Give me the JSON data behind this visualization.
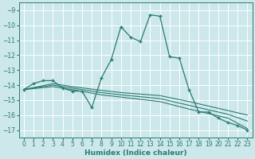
{
  "xlabel": "Humidex (Indice chaleur)",
  "xlim": [
    -0.5,
    23.5
  ],
  "ylim": [
    -17.5,
    -8.5
  ],
  "yticks": [
    -9,
    -10,
    -11,
    -12,
    -13,
    -14,
    -15,
    -16,
    -17
  ],
  "xticks": [
    0,
    1,
    2,
    3,
    4,
    5,
    6,
    7,
    8,
    9,
    10,
    11,
    12,
    13,
    14,
    15,
    16,
    17,
    18,
    19,
    20,
    21,
    22,
    23
  ],
  "bg_color": "#cce8ea",
  "line_color": "#2a7a72",
  "grid_color": "#ffffff",
  "main_line": {
    "x": [
      0,
      1,
      2,
      3,
      4,
      5,
      6,
      7,
      8,
      9,
      10,
      11,
      12,
      13,
      14,
      15,
      16,
      17,
      18,
      19,
      20,
      21,
      22,
      23
    ],
    "y": [
      -14.3,
      -13.9,
      -13.7,
      -13.7,
      -14.2,
      -14.4,
      -14.4,
      -15.5,
      -13.5,
      -12.3,
      -10.1,
      -10.8,
      -11.1,
      -9.3,
      -9.4,
      -12.1,
      -12.2,
      -14.3,
      -15.8,
      -15.8,
      -16.2,
      -16.5,
      -16.7,
      -17.0
    ]
  },
  "flat_lines": [
    {
      "x": [
        0,
        3,
        5,
        8,
        10,
        14,
        17,
        19,
        21,
        23
      ],
      "y": [
        -14.3,
        -13.9,
        -14.1,
        -14.35,
        -14.5,
        -14.7,
        -15.1,
        -15.4,
        -15.7,
        -16.0
      ]
    },
    {
      "x": [
        0,
        3,
        5,
        8,
        10,
        14,
        17,
        19,
        21,
        23
      ],
      "y": [
        -14.3,
        -14.0,
        -14.2,
        -14.5,
        -14.65,
        -14.9,
        -15.35,
        -15.65,
        -15.95,
        -16.4
      ]
    },
    {
      "x": [
        0,
        3,
        5,
        8,
        10,
        14,
        17,
        19,
        21,
        23
      ],
      "y": [
        -14.3,
        -14.1,
        -14.3,
        -14.65,
        -14.8,
        -15.1,
        -15.6,
        -15.9,
        -16.2,
        -16.9
      ]
    }
  ]
}
